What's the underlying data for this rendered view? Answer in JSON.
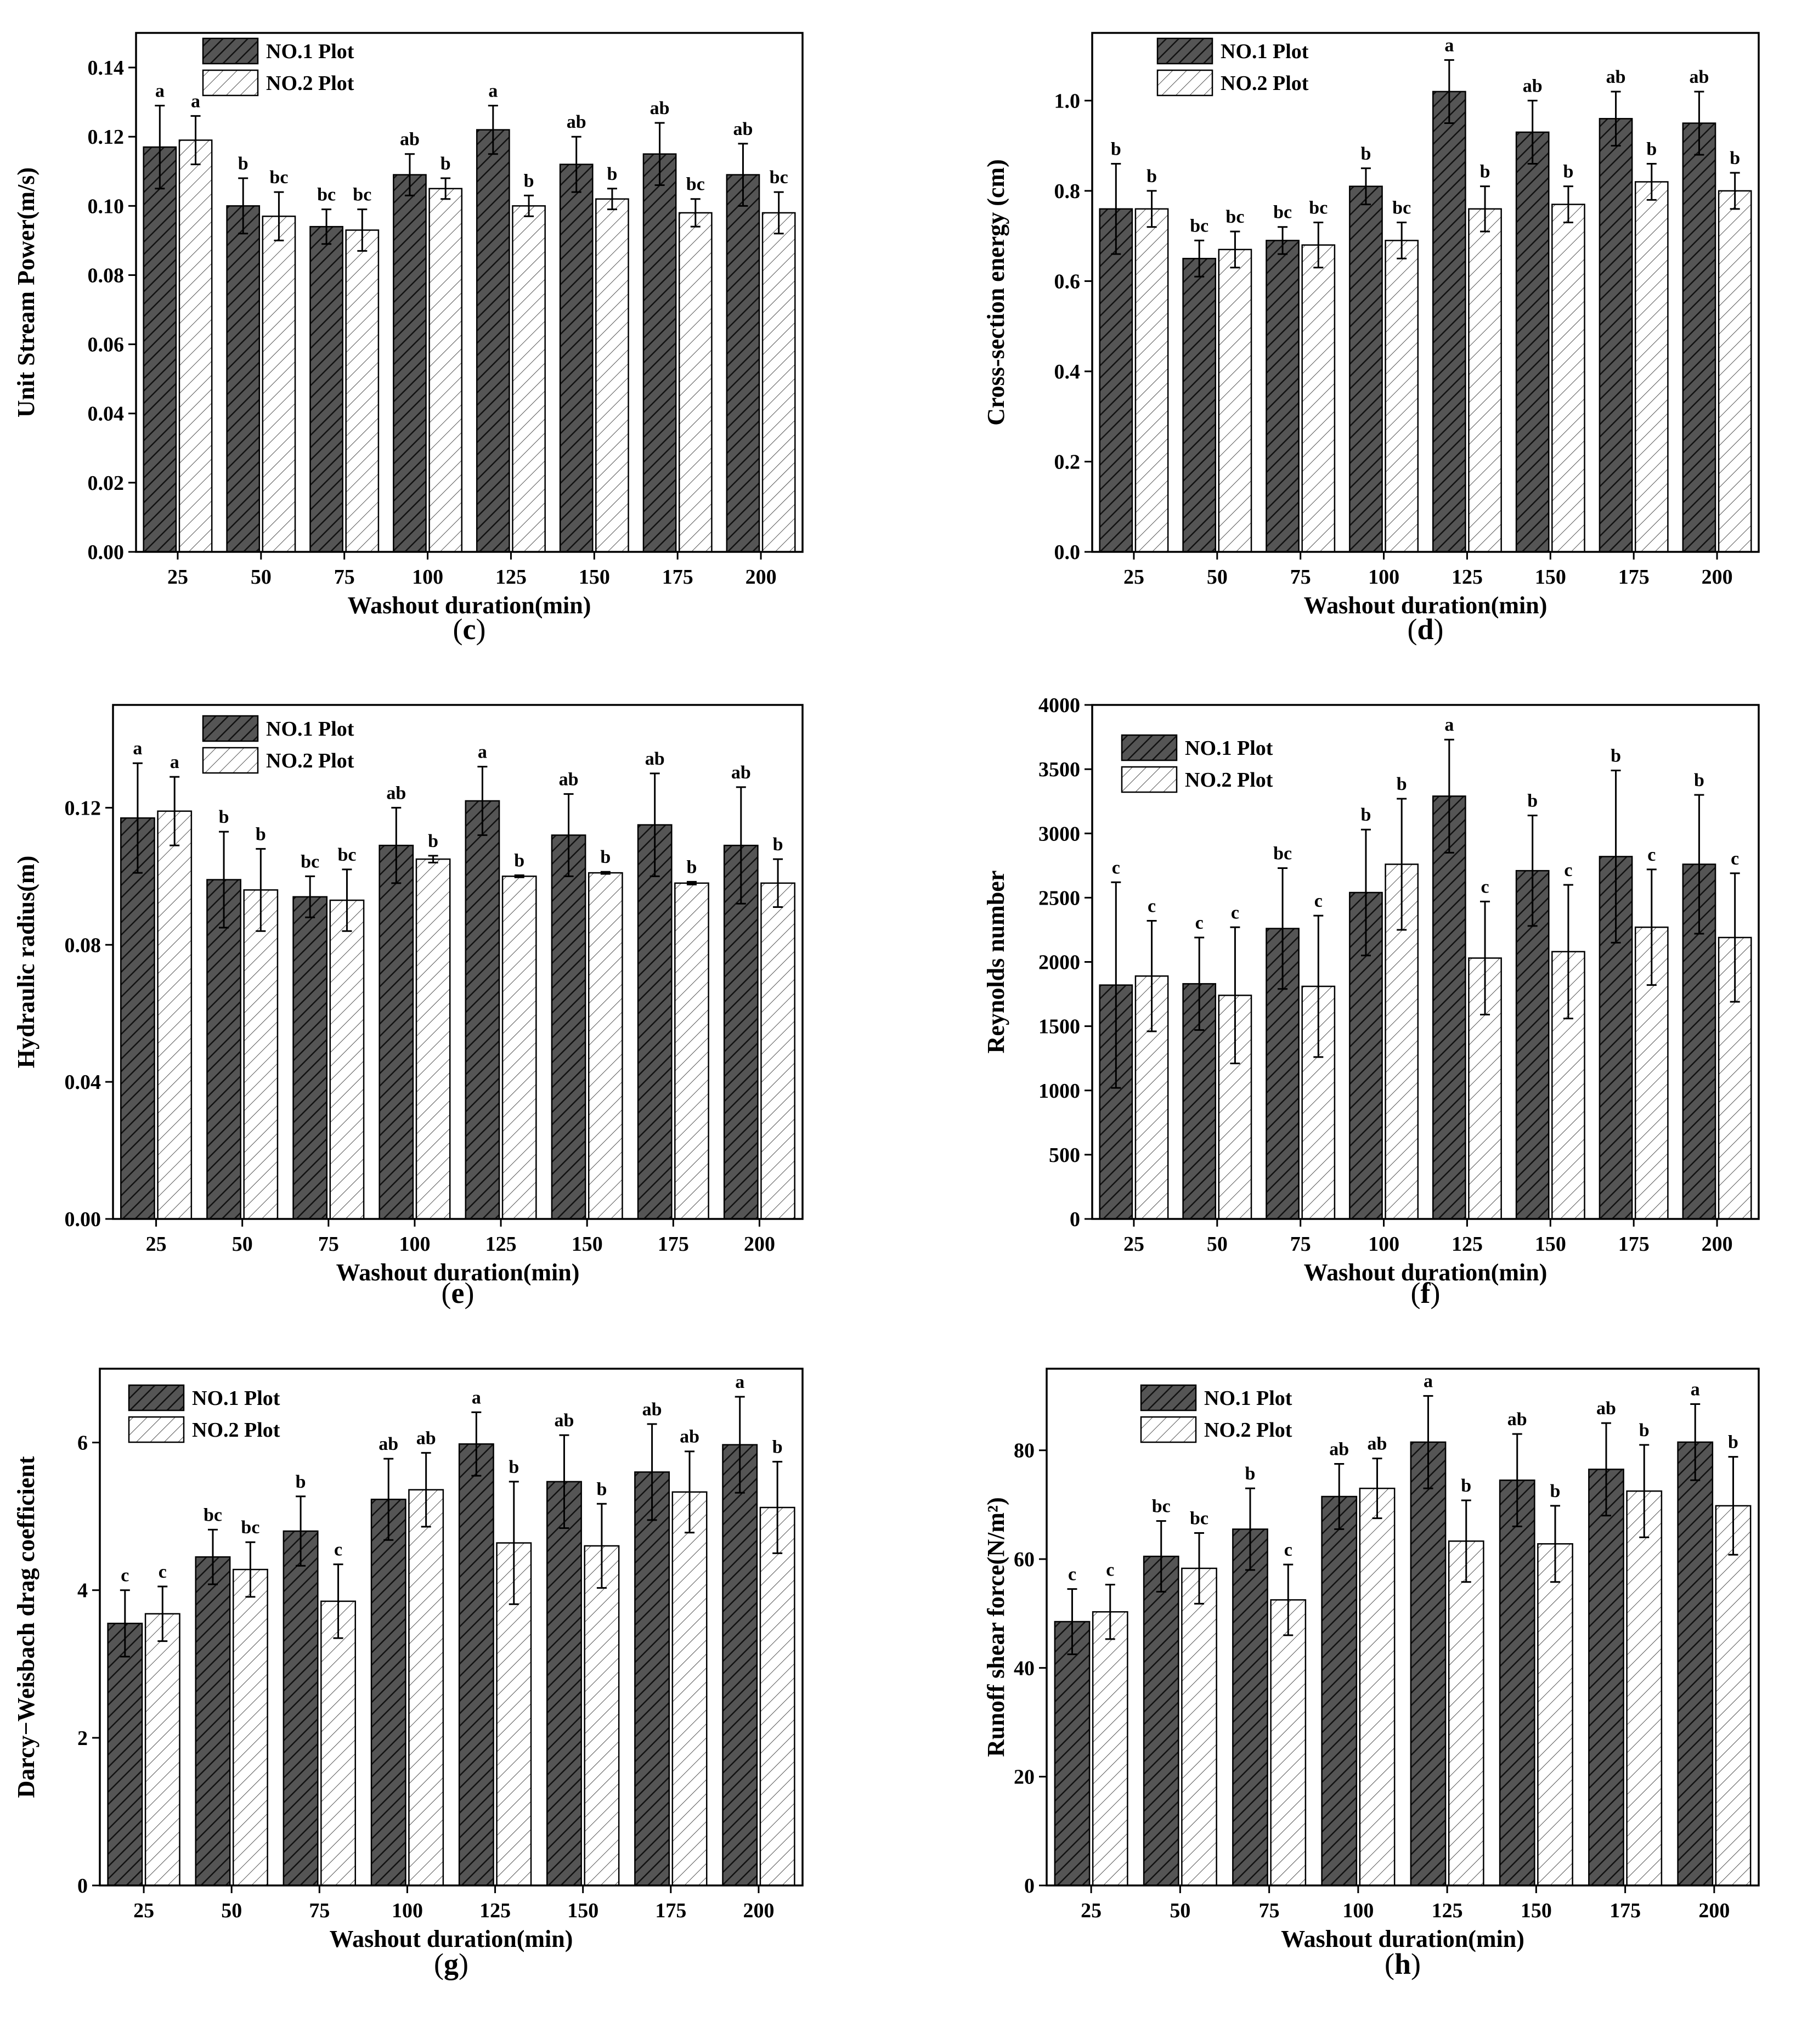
{
  "legend": {
    "series1": "NO.1 Plot",
    "series2": "NO.2 Plot"
  },
  "colors": {
    "series1_fill": "#555555",
    "series2_fill": "#ffffff",
    "stroke": "#000000"
  },
  "chart_data": [
    {
      "panel": "c",
      "caption_letter": "c",
      "type": "bar",
      "ylabel": "Unit Stream Power(m/s)",
      "xlabel": "Washout duration(min)",
      "ylim": [
        0,
        0.15
      ],
      "yticks": [
        "0.00",
        "0.02",
        "0.04",
        "0.06",
        "0.08",
        "0.10",
        "0.12",
        "0.14"
      ],
      "categories": [
        "25",
        "50",
        "75",
        "100",
        "125",
        "150",
        "175",
        "200"
      ],
      "series": [
        {
          "name": "NO.1 Plot",
          "values": [
            0.117,
            0.1,
            0.094,
            0.109,
            0.122,
            0.112,
            0.115,
            0.109
          ],
          "errors": [
            0.012,
            0.008,
            0.005,
            0.006,
            0.007,
            0.008,
            0.009,
            0.009
          ],
          "sig": [
            "a",
            "b",
            "bc",
            "ab",
            "a",
            "ab",
            "ab",
            "ab"
          ]
        },
        {
          "name": "NO.2 Plot",
          "values": [
            0.119,
            0.097,
            0.093,
            0.105,
            0.1,
            0.102,
            0.098,
            0.098
          ],
          "errors": [
            0.007,
            0.007,
            0.006,
            0.003,
            0.003,
            0.003,
            0.004,
            0.006
          ],
          "sig": [
            "a",
            "bc",
            "bc",
            "b",
            "b",
            "b",
            "bc",
            "bc"
          ]
        }
      ]
    },
    {
      "panel": "d",
      "caption_letter": "d",
      "type": "bar",
      "ylabel": "Cross-section energy (cm)",
      "xlabel": "Washout duration(min)",
      "ylim": [
        0,
        1.15
      ],
      "yticks": [
        "0.0",
        "0.2",
        "0.4",
        "0.6",
        "0.8",
        "1.0"
      ],
      "categories": [
        "25",
        "50",
        "75",
        "100",
        "125",
        "150",
        "175",
        "200"
      ],
      "series": [
        {
          "name": "NO.1 Plot",
          "values": [
            0.76,
            0.65,
            0.69,
            0.81,
            1.02,
            0.93,
            0.96,
            0.95
          ],
          "errors": [
            0.1,
            0.04,
            0.03,
            0.04,
            0.07,
            0.07,
            0.06,
            0.07
          ],
          "sig": [
            "b",
            "bc",
            "bc",
            "b",
            "a",
            "ab",
            "ab",
            "ab"
          ]
        },
        {
          "name": "NO.2 Plot",
          "values": [
            0.76,
            0.67,
            0.68,
            0.69,
            0.76,
            0.77,
            0.82,
            0.8
          ],
          "errors": [
            0.04,
            0.04,
            0.05,
            0.04,
            0.05,
            0.04,
            0.04,
            0.04
          ],
          "sig": [
            "b",
            "bc",
            "bc",
            "bc",
            "b",
            "b",
            "b",
            "b"
          ]
        }
      ]
    },
    {
      "panel": "e",
      "caption_letter": "e",
      "type": "bar",
      "ylabel": "Hydraulic radius(m)",
      "xlabel": "Washout duration(min)",
      "ylim": [
        0,
        0.15
      ],
      "yticks": [
        "0.00",
        "0.04",
        "0.08",
        "0.12"
      ],
      "categories": [
        "25",
        "50",
        "75",
        "100",
        "125",
        "150",
        "175",
        "200"
      ],
      "series": [
        {
          "name": "NO.1 Plot",
          "values": [
            0.117,
            0.099,
            0.094,
            0.109,
            0.122,
            0.112,
            0.115,
            0.109
          ],
          "errors": [
            0.016,
            0.014,
            0.006,
            0.011,
            0.01,
            0.012,
            0.015,
            0.017
          ],
          "sig": [
            "a",
            "b",
            "bc",
            "ab",
            "a",
            "ab",
            "ab",
            "ab"
          ]
        },
        {
          "name": "NO.2 Plot",
          "values": [
            0.119,
            0.096,
            0.093,
            0.105,
            0.1,
            0.101,
            0.098,
            0.098
          ],
          "errors": [
            0.01,
            0.012,
            0.009,
            0.001,
            0.0003,
            0.0003,
            0.0004,
            0.007
          ],
          "sig": [
            "a",
            "b",
            "bc",
            "b",
            "b",
            "b",
            "b",
            "b"
          ]
        }
      ]
    },
    {
      "panel": "f",
      "caption_letter": "f",
      "type": "bar",
      "ylabel": "Reynolds number",
      "xlabel": "Washout duration(min)",
      "ylim": [
        0,
        4000
      ],
      "yticks": [
        "0",
        "500",
        "1000",
        "1500",
        "2000",
        "2500",
        "3000",
        "3500",
        "4000"
      ],
      "categories": [
        "25",
        "50",
        "75",
        "100",
        "125",
        "150",
        "175",
        "200"
      ],
      "series": [
        {
          "name": "NO.1 Plot",
          "values": [
            1820,
            1830,
            2260,
            2540,
            3290,
            2710,
            2820,
            2760
          ],
          "errors": [
            800,
            360,
            470,
            490,
            440,
            430,
            670,
            540
          ],
          "sig": [
            "c",
            "c",
            "bc",
            "b",
            "a",
            "b",
            "b",
            "b"
          ]
        },
        {
          "name": "NO.2 Plot",
          "values": [
            1890,
            1740,
            1810,
            2760,
            2030,
            2080,
            2270,
            2190
          ],
          "errors": [
            430,
            530,
            550,
            510,
            440,
            520,
            450,
            500
          ],
          "sig": [
            "c",
            "c",
            "c",
            "b",
            "c",
            "c",
            "c",
            "c"
          ]
        }
      ]
    },
    {
      "panel": "g",
      "caption_letter": "g",
      "type": "bar",
      "ylabel": "Darcy−Weisbach drag coefficient",
      "xlabel": "Washout duration(min)",
      "ylim": [
        0,
        7
      ],
      "yticks": [
        "0",
        "2",
        "4",
        "6"
      ],
      "categories": [
        "25",
        "50",
        "75",
        "100",
        "125",
        "150",
        "175",
        "200"
      ],
      "series": [
        {
          "name": "NO.1 Plot",
          "values": [
            3.55,
            4.45,
            4.8,
            5.23,
            5.98,
            5.47,
            5.6,
            5.97
          ],
          "errors": [
            0.45,
            0.37,
            0.47,
            0.55,
            0.43,
            0.63,
            0.65,
            0.65
          ],
          "sig": [
            "c",
            "bc",
            "b",
            "ab",
            "a",
            "ab",
            "ab",
            "a"
          ]
        },
        {
          "name": "NO.2 Plot",
          "values": [
            3.68,
            4.28,
            3.85,
            5.36,
            4.64,
            4.6,
            5.33,
            5.12
          ],
          "errors": [
            0.37,
            0.37,
            0.5,
            0.5,
            0.83,
            0.57,
            0.55,
            0.62
          ],
          "sig": [
            "c",
            "bc",
            "c",
            "ab",
            "b",
            "b",
            "ab",
            "b"
          ]
        }
      ]
    },
    {
      "panel": "h",
      "caption_letter": "h",
      "type": "bar",
      "ylabel": "Runoff shear force(N/m²)",
      "xlabel": "Washout duration(min)",
      "ylim": [
        0,
        95
      ],
      "yticks": [
        "0",
        "20",
        "40",
        "60",
        "80"
      ],
      "categories": [
        "25",
        "50",
        "75",
        "100",
        "125",
        "150",
        "175",
        "200"
      ],
      "series": [
        {
          "name": "NO.1 Plot",
          "values": [
            48.5,
            60.5,
            65.5,
            71.5,
            81.5,
            74.5,
            76.5,
            81.5
          ],
          "errors": [
            6,
            6.5,
            7.5,
            6,
            8.5,
            8.5,
            8.5,
            7
          ],
          "sig": [
            "c",
            "bc",
            "b",
            "ab",
            "a",
            "ab",
            "ab",
            "a"
          ]
        },
        {
          "name": "NO.2 Plot",
          "values": [
            50.3,
            58.3,
            52.5,
            73.0,
            63.3,
            62.8,
            72.5,
            69.8
          ],
          "errors": [
            5,
            6.5,
            6.5,
            5.5,
            7.5,
            7,
            8.5,
            9
          ],
          "sig": [
            "c",
            "bc",
            "c",
            "ab",
            "b",
            "b",
            "b",
            "b"
          ]
        }
      ]
    }
  ]
}
